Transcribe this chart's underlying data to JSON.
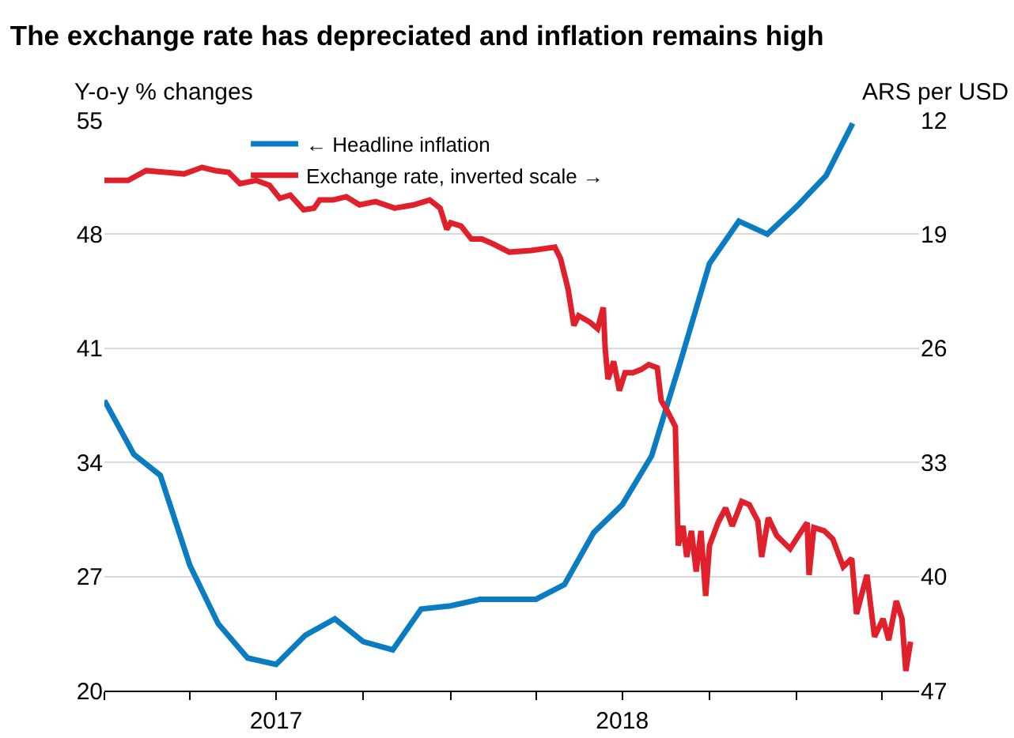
{
  "chart_data": {
    "type": "line",
    "title": "The exchange rate has depreciated and inflation remains high",
    "ylabel": "Y-o-y % changes",
    "y2label": "ARS per USD",
    "xlim": [
      "2017-01-01",
      "2019-05-10"
    ],
    "xticks": [
      {
        "value": "2017-01-01",
        "label": null
      },
      {
        "value": "2017-04-01",
        "label": null
      },
      {
        "value": "2017-07-01",
        "label": "2017"
      },
      {
        "value": "2017-10-01",
        "label": null
      },
      {
        "value": "2018-01-01",
        "label": null
      },
      {
        "value": "2018-04-01",
        "label": null
      },
      {
        "value": "2018-07-01",
        "label": "2018"
      },
      {
        "value": "2018-10-01",
        "label": null
      },
      {
        "value": "2019-01-01",
        "label": null
      },
      {
        "value": "2019-04-01",
        "label": null
      }
    ],
    "ylim": [
      20,
      55
    ],
    "yticks": [
      20,
      27,
      34,
      41,
      48,
      55
    ],
    "y2lim": [
      47,
      12
    ],
    "y2ticks": [
      12,
      19,
      26,
      33,
      40,
      47
    ],
    "grid": "y",
    "legend": "top left",
    "line_style": "solid",
    "marker": "none",
    "series": [
      {
        "name": "← Headline inflation",
        "color": "#0a7cc1",
        "x": [
          "2017-01-01",
          "2017-02-01",
          "2017-03-01",
          "2017-04-01",
          "2017-05-01",
          "2017-06-01",
          "2017-07-01",
          "2017-08-01",
          "2017-09-01",
          "2017-10-01",
          "2017-11-01",
          "2017-12-01",
          "2018-01-01",
          "2018-02-01",
          "2018-03-01",
          "2018-04-01",
          "2018-05-01",
          "2018-06-01",
          "2018-07-01",
          "2018-08-01",
          "2018-09-01",
          "2018-10-01",
          "2018-11-01",
          "2018-12-01",
          "2019-01-01",
          "2019-02-01",
          "2019-03-01"
        ],
        "values": [
          37.8,
          34.5,
          33.2,
          27.7,
          24.1,
          22.0,
          21.6,
          23.4,
          24.4,
          23.0,
          22.5,
          25.0,
          25.2,
          25.6,
          25.6,
          25.6,
          26.5,
          29.7,
          31.4,
          34.4,
          40.3,
          46.2,
          48.8,
          48.0,
          49.7,
          51.6,
          54.8
        ]
      },
      {
        "name": "Exchange rate, inverted scale →",
        "color": "#e0202a",
        "axis": "y2",
        "x": [
          "2017-01-01",
          "2017-01-26",
          "2017-02-14",
          "2017-03-06",
          "2017-03-26",
          "2017-04-14",
          "2017-04-28",
          "2017-05-12",
          "2017-05-24",
          "2017-06-10",
          "2017-06-24",
          "2017-07-05",
          "2017-07-16",
          "2017-07-30",
          "2017-08-10",
          "2017-08-16",
          "2017-08-30",
          "2017-09-13",
          "2017-09-27",
          "2017-10-14",
          "2017-11-03",
          "2017-11-23",
          "2017-12-10",
          "2017-12-21",
          "2017-12-28",
          "2018-01-01",
          "2018-01-12",
          "2018-01-23",
          "2018-02-03",
          "2018-02-15",
          "2018-03-04",
          "2018-03-27",
          "2018-04-21",
          "2018-04-27",
          "2018-05-05",
          "2018-05-11",
          "2018-05-16",
          "2018-05-28",
          "2018-06-05",
          "2018-06-11",
          "2018-06-13",
          "2018-06-16",
          "2018-06-22",
          "2018-06-28",
          "2018-07-04",
          "2018-07-12",
          "2018-07-21",
          "2018-07-29",
          "2018-08-07",
          "2018-08-11",
          "2018-08-18",
          "2018-08-26",
          "2018-08-29",
          "2018-09-03",
          "2018-09-07",
          "2018-09-12",
          "2018-09-17",
          "2018-09-22",
          "2018-09-27",
          "2018-10-01",
          "2018-10-10",
          "2018-10-18",
          "2018-10-25",
          "2018-11-04",
          "2018-11-12",
          "2018-11-21",
          "2018-11-25",
          "2018-12-02",
          "2018-12-11",
          "2018-12-25",
          "2019-01-05",
          "2019-01-12",
          "2019-01-14",
          "2019-01-19",
          "2019-01-30",
          "2019-02-08",
          "2019-02-19",
          "2019-02-28",
          "2019-03-05",
          "2019-03-16",
          "2019-03-24",
          "2019-04-02",
          "2019-04-08",
          "2019-04-16",
          "2019-04-22",
          "2019-04-26",
          "2019-05-01"
        ],
        "values": [
          15.7,
          15.7,
          15.1,
          15.2,
          15.3,
          14.9,
          15.1,
          15.2,
          15.9,
          15.7,
          16.0,
          16.8,
          16.6,
          17.5,
          17.4,
          16.9,
          16.9,
          16.7,
          17.2,
          17.0,
          17.4,
          17.2,
          16.9,
          17.4,
          18.7,
          18.3,
          18.5,
          19.3,
          19.3,
          19.6,
          20.1,
          20.0,
          19.8,
          20.5,
          22.4,
          24.6,
          24.0,
          24.4,
          24.8,
          23.5,
          26.0,
          27.9,
          26.8,
          28.6,
          27.5,
          27.5,
          27.3,
          27.0,
          27.2,
          29.2,
          29.9,
          30.8,
          38.1,
          36.9,
          38.8,
          37.2,
          39.7,
          37.2,
          41.2,
          38.1,
          36.7,
          35.8,
          36.9,
          35.4,
          35.6,
          36.6,
          38.8,
          36.4,
          37.5,
          38.3,
          37.3,
          36.7,
          39.9,
          37.0,
          37.2,
          37.7,
          39.4,
          38.9,
          42.3,
          39.9,
          43.7,
          42.6,
          43.9,
          41.5,
          42.6,
          45.8,
          44.0
        ]
      }
    ]
  }
}
